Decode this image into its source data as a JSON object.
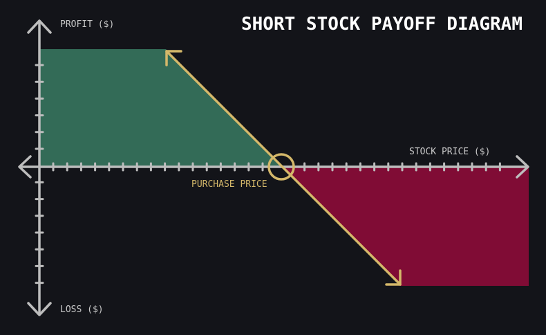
{
  "title": "SHORT STOCK PAYOFF DIAGRAM",
  "labels": {
    "y_positive": "PROFIT ($)",
    "y_negative": "LOSS ($)",
    "x_axis": "STOCK PRICE ($)",
    "breakeven": "PURCHASE PRICE"
  },
  "colors": {
    "background": "#131419",
    "axis": "#bdbdbd",
    "payoff_line": "#d4b86a",
    "profit_region": "#336b57",
    "loss_region": "#800c35"
  },
  "icons": {
    "axis_ends": "arrowheads",
    "breakeven_marker": "circle"
  }
}
